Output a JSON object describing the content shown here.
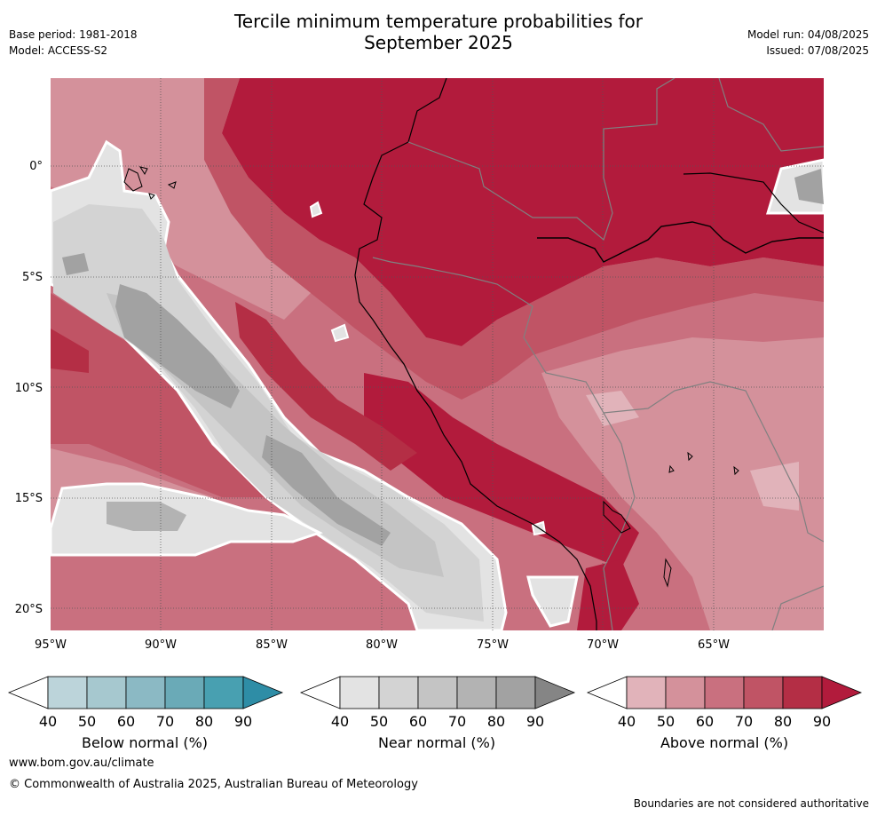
{
  "title_line1": "Tercile minimum temperature probabilities for",
  "title_line2": "September 2025",
  "base_period": "Base period: 1981-2018",
  "model": "Model: ACCESS-S2",
  "model_run": "Model run: 04/08/2025",
  "issued": "Issued: 07/08/2025",
  "map": {
    "lat_ticks": [
      "0°",
      "5°S",
      "10°S",
      "15°S",
      "20°S"
    ],
    "lon_ticks": [
      "95°W",
      "90°W",
      "85°W",
      "80°W",
      "75°W",
      "70°W",
      "65°W"
    ],
    "extent": {
      "lon": [
        -95,
        -60
      ],
      "lat": [
        -21,
        4
      ]
    }
  },
  "colorbars": [
    {
      "label": "Below normal (%)",
      "ticks": [
        "40",
        "50",
        "60",
        "70",
        "80",
        "90"
      ],
      "colors": [
        "#ffffff",
        "#bcd4da",
        "#a6c8cf",
        "#8bb9c4",
        "#6aaab7",
        "#48a0b1",
        "#2e8da6"
      ]
    },
    {
      "label": "Near normal (%)",
      "ticks": [
        "40",
        "50",
        "60",
        "70",
        "80",
        "90"
      ],
      "colors": [
        "#ffffff",
        "#e3e3e3",
        "#d3d3d3",
        "#c4c4c4",
        "#b3b3b3",
        "#a2a2a2",
        "#858585"
      ]
    },
    {
      "label": "Above normal (%)",
      "ticks": [
        "40",
        "50",
        "60",
        "70",
        "80",
        "90"
      ],
      "colors": [
        "#ffffff",
        "#e1b3ba",
        "#d4919b",
        "#c9707f",
        "#c05465",
        "#b42e45",
        "#b21b3c"
      ]
    }
  ],
  "footer": {
    "url": "www.bom.gov.au/climate",
    "copyright": "© Commonwealth of Australia 2025, Australian Bureau of Meteorology",
    "disclaimer": "Boundaries are not considered authoritative"
  }
}
